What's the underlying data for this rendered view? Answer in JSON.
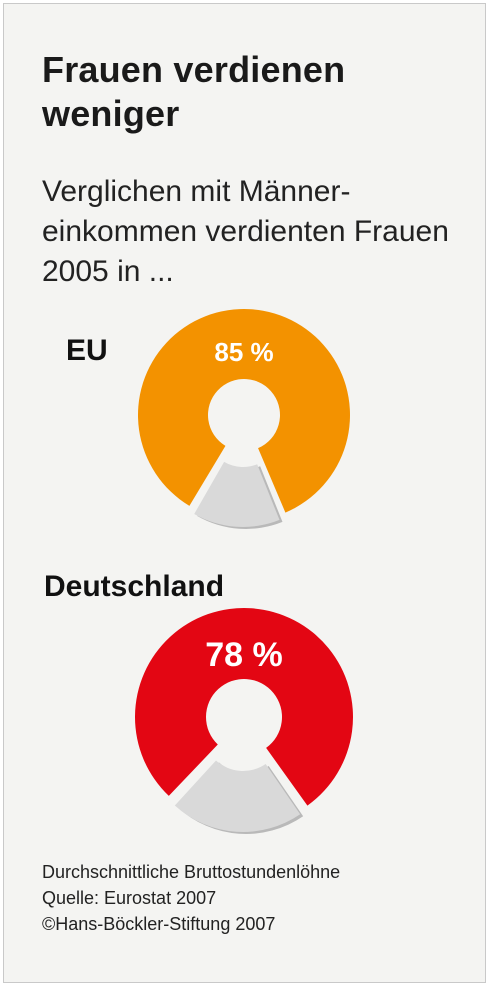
{
  "title": "Frauen verdienen weniger",
  "subtitle": "Verglichen mit Männer-einkommen verdienten Frauen 2005 in ...",
  "source_lines": [
    "Durchschnittliche Bruttostundenlöhne",
    "Quelle: Eurostat 2007",
    "©Hans-Böckler-Stiftung 2007"
  ],
  "chart_data": [
    {
      "type": "pie",
      "title": "EU",
      "slices": [
        {
          "label": "85 %",
          "value": 85,
          "color": "#f39200"
        },
        {
          "label": "",
          "value": 15,
          "color": "#d9d9d9"
        }
      ]
    },
    {
      "type": "pie",
      "title": "Deutschland",
      "slices": [
        {
          "label": "78 %",
          "value": 78,
          "color": "#e30613"
        },
        {
          "label": "",
          "value": 22,
          "color": "#d9d9d9"
        }
      ]
    }
  ]
}
